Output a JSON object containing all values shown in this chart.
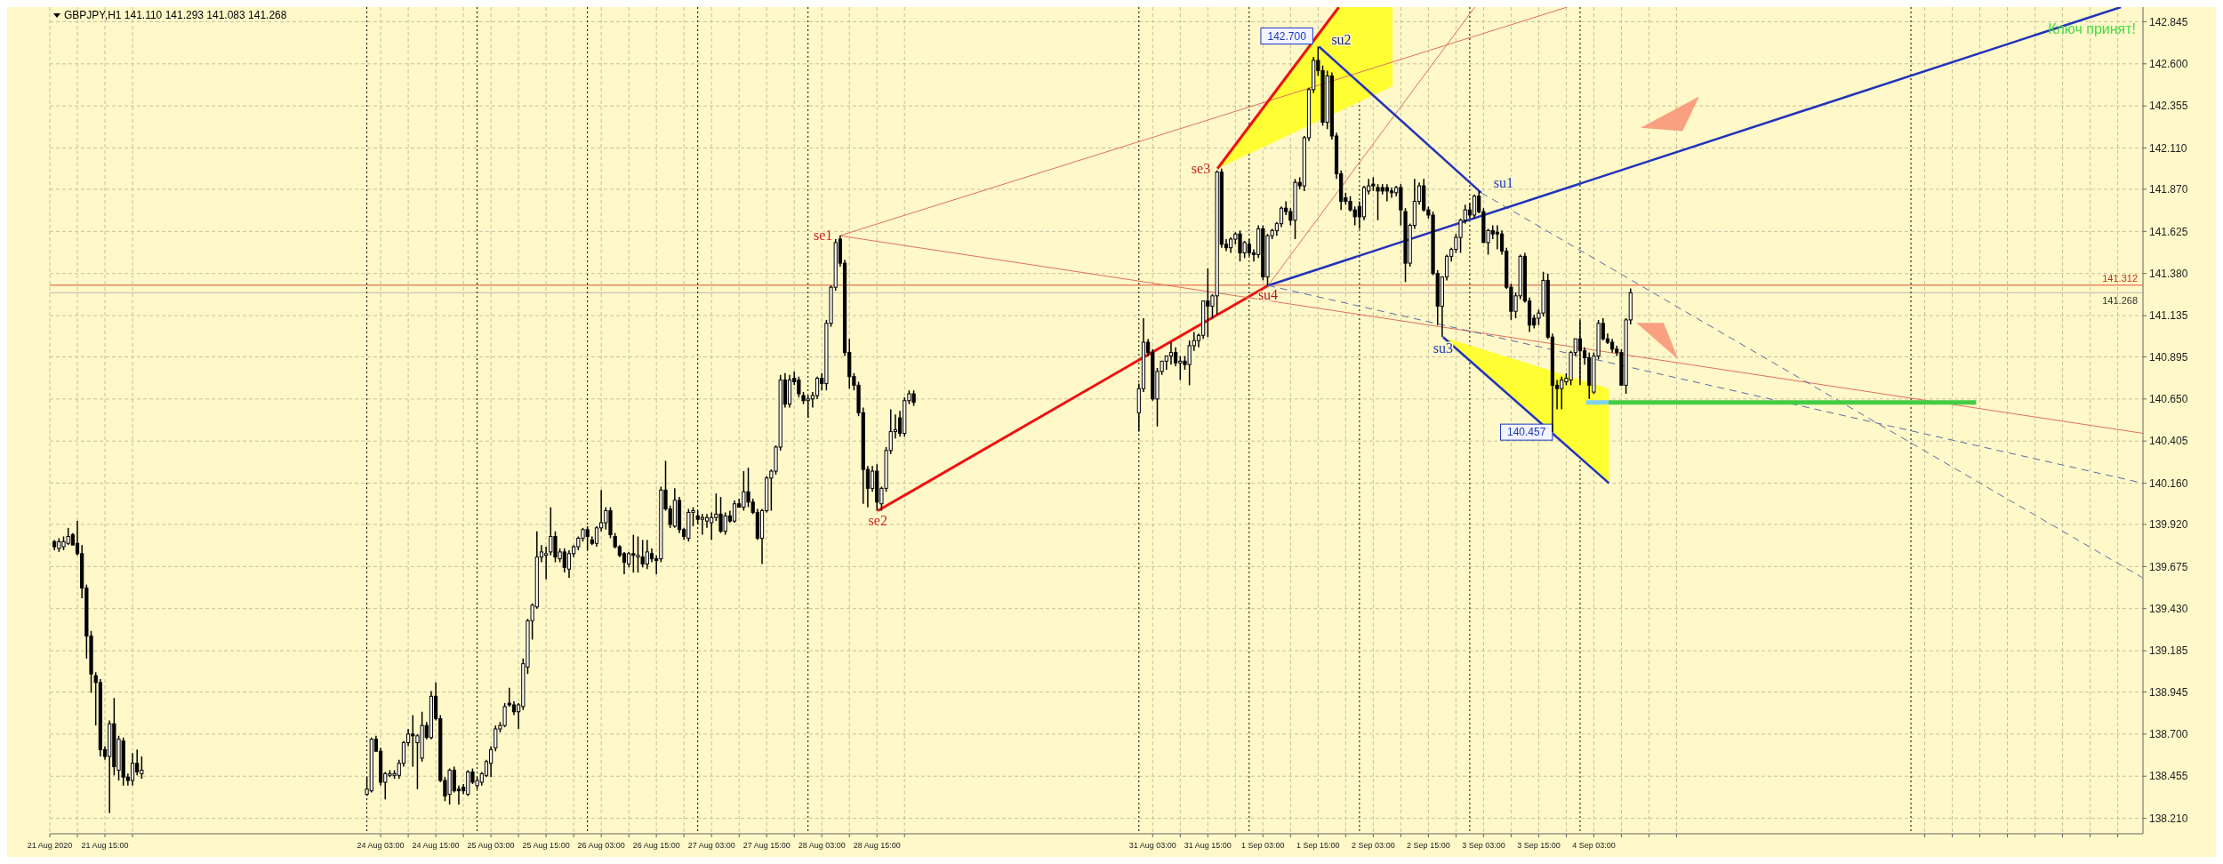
{
  "chart_data": {
    "type": "candlestick",
    "title": "GBPJPY,H1  141.110 141.293 141.083 141.268",
    "xlim": [
      "2020-08-21T03:00",
      "2020-09-09T02:30"
    ],
    "ylim": [
      138.12,
      142.93
    ],
    "xticks": [
      {
        "value": "2020-08-21T03:00",
        "label": "21 Aug 2020"
      },
      {
        "value": "2020-08-21T09:00",
        "label": null
      },
      {
        "value": "2020-08-21T15:00",
        "label": "21 Aug 15:00"
      },
      {
        "value": "2020-08-21T21:00",
        "label": null
      },
      {
        "value": "2020-08-24T03:00",
        "label": "24 Aug 03:00"
      },
      {
        "value": "2020-08-24T09:00",
        "label": null
      },
      {
        "value": "2020-08-24T15:00",
        "label": "24 Aug 15:00"
      },
      {
        "value": "2020-08-24T21:00",
        "label": null
      },
      {
        "value": "2020-08-25T03:00",
        "label": "25 Aug 03:00"
      },
      {
        "value": "2020-08-25T09:00",
        "label": null
      },
      {
        "value": "2020-08-25T15:00",
        "label": "25 Aug 15:00"
      },
      {
        "value": "2020-08-25T21:00",
        "label": null
      },
      {
        "value": "2020-08-26T03:00",
        "label": "26 Aug 03:00"
      },
      {
        "value": "2020-08-26T09:00",
        "label": null
      },
      {
        "value": "2020-08-26T15:00",
        "label": "26 Aug 15:00"
      },
      {
        "value": "2020-08-26T21:00",
        "label": null
      },
      {
        "value": "2020-08-27T03:00",
        "label": "27 Aug 03:00"
      },
      {
        "value": "2020-08-27T09:00",
        "label": null
      },
      {
        "value": "2020-08-27T15:00",
        "label": "27 Aug 15:00"
      },
      {
        "value": "2020-08-27T21:00",
        "label": null
      },
      {
        "value": "2020-08-28T03:00",
        "label": "28 Aug 03:00"
      },
      {
        "value": "2020-08-28T09:00",
        "label": null
      },
      {
        "value": "2020-08-28T15:00",
        "label": "28 Aug 15:00"
      },
      {
        "value": "2020-08-28T21:00",
        "label": null
      },
      {
        "value": "2020-08-31T03:00",
        "label": "31 Aug 03:00"
      },
      {
        "value": "2020-08-31T09:00",
        "label": null
      },
      {
        "value": "2020-08-31T15:00",
        "label": "31 Aug 15:00"
      },
      {
        "value": "2020-08-31T21:00",
        "label": null
      },
      {
        "value": "2020-09-01T03:00",
        "label": "1 Sep 03:00"
      },
      {
        "value": "2020-09-01T09:00",
        "label": null
      },
      {
        "value": "2020-09-01T15:00",
        "label": "1 Sep 15:00"
      },
      {
        "value": "2020-09-01T21:00",
        "label": null
      },
      {
        "value": "2020-09-02T03:00",
        "label": "2 Sep 03:00"
      },
      {
        "value": "2020-09-02T09:00",
        "label": null
      },
      {
        "value": "2020-09-02T15:00",
        "label": "2 Sep 15:00"
      },
      {
        "value": "2020-09-02T21:00",
        "label": null
      },
      {
        "value": "2020-09-03T03:00",
        "label": "3 Sep 03:00"
      },
      {
        "value": "2020-09-03T09:00",
        "label": null
      },
      {
        "value": "2020-09-03T15:00",
        "label": "3 Sep 15:00"
      },
      {
        "value": "2020-09-03T21:00",
        "label": null
      },
      {
        "value": "2020-09-04T03:00",
        "label": "4 Sep 03:00"
      },
      {
        "value": "2020-09-04T09:00",
        "label": null
      },
      {
        "value": "2020-09-04T15:00",
        "label": null
      },
      {
        "value": "2020-09-04T21:00",
        "label": null
      },
      {
        "value": "2020-09-07T03:00",
        "label": null
      },
      {
        "value": "2020-09-07T09:00",
        "label": null
      },
      {
        "value": "2020-09-07T15:00",
        "label": null
      },
      {
        "value": "2020-09-07T21:00",
        "label": null
      },
      {
        "value": "2020-09-08T03:00",
        "label": null
      },
      {
        "value": "2020-09-08T09:00",
        "label": null
      },
      {
        "value": "2020-09-08T15:00",
        "label": null
      },
      {
        "value": "2020-09-08T21:00",
        "label": null
      }
    ],
    "yticks": [
      {
        "value": 138.21,
        "label": "138.210"
      },
      138.455,
      {
        "value": 138.7,
        "label": "138.700"
      },
      138.945,
      139.185,
      {
        "value": 139.43,
        "label": "139.430"
      },
      139.675,
      {
        "value": 139.92,
        "label": "139.920"
      },
      {
        "value": 140.16,
        "label": "140.160"
      },
      140.405,
      {
        "value": 140.65,
        "label": "140.650"
      },
      140.895,
      141.135,
      {
        "value": 141.38,
        "label": "141.380"
      },
      141.625,
      {
        "value": 141.87,
        "label": "141.870"
      },
      {
        "value": 142.11,
        "label": "142.110"
      },
      142.355,
      {
        "value": 142.6,
        "label": "142.600"
      },
      142.845
    ],
    "grid": true,
    "x": [
      "2020-08-21T04:00",
      "2020-08-21T05:00",
      "2020-08-21T06:00",
      "2020-08-21T07:00",
      "2020-08-21T08:00",
      "2020-08-21T09:00",
      "2020-08-21T10:00",
      "2020-08-21T11:00",
      "2020-08-21T12:00",
      "2020-08-21T13:00",
      "2020-08-21T14:00",
      "2020-08-21T15:00",
      "2020-08-21T16:00",
      "2020-08-21T17:00",
      "2020-08-21T18:00",
      "2020-08-21T19:00",
      "2020-08-21T20:00",
      "2020-08-21T21:00",
      "2020-08-21T22:00",
      "2020-08-21T23:00",
      "2020-08-24T00:00",
      "2020-08-24T01:00",
      "2020-08-24T02:00",
      "2020-08-24T03:00",
      "2020-08-24T04:00",
      "2020-08-24T05:00",
      "2020-08-24T06:00",
      "2020-08-24T07:00",
      "2020-08-24T08:00",
      "2020-08-24T09:00",
      "2020-08-24T10:00",
      "2020-08-24T11:00",
      "2020-08-24T12:00",
      "2020-08-24T13:00",
      "2020-08-24T14:00",
      "2020-08-24T15:00",
      "2020-08-24T16:00",
      "2020-08-24T17:00",
      "2020-08-24T18:00",
      "2020-08-24T19:00",
      "2020-08-24T20:00",
      "2020-08-24T21:00",
      "2020-08-24T22:00",
      "2020-08-24T23:00",
      "2020-08-25T00:00",
      "2020-08-25T01:00",
      "2020-08-25T02:00",
      "2020-08-25T03:00",
      "2020-08-25T04:00",
      "2020-08-25T05:00",
      "2020-08-25T06:00",
      "2020-08-25T07:00",
      "2020-08-25T08:00",
      "2020-08-25T09:00",
      "2020-08-25T10:00",
      "2020-08-25T11:00",
      "2020-08-25T12:00",
      "2020-08-25T13:00",
      "2020-08-25T14:00",
      "2020-08-25T15:00",
      "2020-08-25T16:00",
      "2020-08-25T17:00",
      "2020-08-25T18:00",
      "2020-08-25T19:00",
      "2020-08-25T20:00",
      "2020-08-25T21:00",
      "2020-08-25T22:00",
      "2020-08-25T23:00",
      "2020-08-26T00:00",
      "2020-08-26T01:00",
      "2020-08-26T02:00",
      "2020-08-26T03:00",
      "2020-08-26T04:00",
      "2020-08-26T05:00",
      "2020-08-26T06:00",
      "2020-08-26T07:00",
      "2020-08-26T08:00",
      "2020-08-26T09:00",
      "2020-08-26T10:00",
      "2020-08-26T11:00",
      "2020-08-26T12:00",
      "2020-08-26T13:00",
      "2020-08-26T14:00",
      "2020-08-26T15:00",
      "2020-08-26T16:00",
      "2020-08-26T17:00",
      "2020-08-26T18:00",
      "2020-08-26T19:00",
      "2020-08-26T20:00",
      "2020-08-26T21:00",
      "2020-08-26T22:00",
      "2020-08-26T23:00",
      "2020-08-27T00:00",
      "2020-08-27T01:00",
      "2020-08-27T02:00",
      "2020-08-27T03:00",
      "2020-08-27T04:00",
      "2020-08-27T05:00",
      "2020-08-27T06:00",
      "2020-08-27T07:00",
      "2020-08-27T08:00",
      "2020-08-27T09:00",
      "2020-08-27T10:00",
      "2020-08-27T11:00",
      "2020-08-27T12:00",
      "2020-08-27T13:00",
      "2020-08-27T14:00",
      "2020-08-27T15:00",
      "2020-08-27T16:00",
      "2020-08-27T17:00",
      "2020-08-27T18:00",
      "2020-08-27T19:00",
      "2020-08-27T20:00",
      "2020-08-27T21:00",
      "2020-08-27T22:00",
      "2020-08-27T23:00",
      "2020-08-28T00:00",
      "2020-08-28T01:00",
      "2020-08-28T02:00",
      "2020-08-28T03:00",
      "2020-08-28T04:00",
      "2020-08-28T05:00",
      "2020-08-28T06:00",
      "2020-08-28T07:00",
      "2020-08-28T08:00",
      "2020-08-28T09:00",
      "2020-08-28T10:00",
      "2020-08-28T11:00",
      "2020-08-28T12:00",
      "2020-08-28T13:00",
      "2020-08-28T14:00",
      "2020-08-28T15:00",
      "2020-08-28T16:00",
      "2020-08-28T17:00",
      "2020-08-28T18:00",
      "2020-08-28T19:00",
      "2020-08-28T20:00",
      "2020-08-28T21:00",
      "2020-08-28T22:00",
      "2020-08-28T23:00",
      "2020-08-31T00:00",
      "2020-08-31T01:00",
      "2020-08-31T02:00",
      "2020-08-31T03:00",
      "2020-08-31T04:00",
      "2020-08-31T05:00",
      "2020-08-31T06:00",
      "2020-08-31T07:00",
      "2020-08-31T08:00",
      "2020-08-31T09:00",
      "2020-08-31T10:00",
      "2020-08-31T11:00",
      "2020-08-31T12:00",
      "2020-08-31T13:00",
      "2020-08-31T14:00",
      "2020-08-31T15:00",
      "2020-08-31T16:00",
      "2020-08-31T17:00",
      "2020-08-31T18:00",
      "2020-08-31T19:00",
      "2020-08-31T20:00",
      "2020-08-31T21:00",
      "2020-08-31T22:00",
      "2020-08-31T23:00",
      "2020-09-01T00:00",
      "2020-09-01T01:00",
      "2020-09-01T02:00",
      "2020-09-01T03:00",
      "2020-09-01T04:00",
      "2020-09-01T05:00",
      "2020-09-01T06:00",
      "2020-09-01T07:00",
      "2020-09-01T08:00",
      "2020-09-01T09:00",
      "2020-09-01T10:00",
      "2020-09-01T11:00",
      "2020-09-01T12:00",
      "2020-09-01T13:00",
      "2020-09-01T14:00",
      "2020-09-01T15:00",
      "2020-09-01T16:00",
      "2020-09-01T17:00",
      "2020-09-01T18:00",
      "2020-09-01T19:00",
      "2020-09-01T20:00",
      "2020-09-01T21:00",
      "2020-09-01T22:00",
      "2020-09-01T23:00",
      "2020-09-02T00:00",
      "2020-09-02T01:00",
      "2020-09-02T02:00",
      "2020-09-02T03:00",
      "2020-09-02T04:00",
      "2020-09-02T05:00",
      "2020-09-02T06:00",
      "2020-09-02T07:00",
      "2020-09-02T08:00",
      "2020-09-02T09:00",
      "2020-09-02T10:00",
      "2020-09-02T11:00",
      "2020-09-02T12:00",
      "2020-09-02T13:00",
      "2020-09-02T14:00",
      "2020-09-02T15:00",
      "2020-09-02T16:00",
      "2020-09-02T17:00",
      "2020-09-02T18:00",
      "2020-09-02T19:00",
      "2020-09-02T20:00",
      "2020-09-02T21:00",
      "2020-09-02T22:00",
      "2020-09-02T23:00",
      "2020-09-03T00:00",
      "2020-09-03T01:00",
      "2020-09-03T02:00",
      "2020-09-03T03:00",
      "2020-09-03T04:00",
      "2020-09-03T05:00",
      "2020-09-03T06:00",
      "2020-09-03T07:00",
      "2020-09-03T08:00",
      "2020-09-03T09:00",
      "2020-09-03T10:00",
      "2020-09-03T11:00",
      "2020-09-03T12:00",
      "2020-09-03T13:00",
      "2020-09-03T14:00",
      "2020-09-03T15:00",
      "2020-09-03T16:00",
      "2020-09-03T17:00",
      "2020-09-03T18:00",
      "2020-09-03T19:00",
      "2020-09-03T20:00",
      "2020-09-03T21:00",
      "2020-09-03T22:00",
      "2020-09-03T23:00",
      "2020-09-04T00:00",
      "2020-09-04T01:00",
      "2020-09-04T02:00",
      "2020-09-04T03:00",
      "2020-09-04T04:00",
      "2020-09-04T05:00",
      "2020-09-04T06:00",
      "2020-09-04T07:00",
      "2020-09-04T08:00",
      "2020-09-04T09:00",
      "2020-09-04T10:00",
      "2020-09-04T11:00"
    ],
    "ohlc": [
      [
        139.82,
        139.83,
        139.77,
        139.79
      ],
      [
        139.78,
        139.84,
        139.76,
        139.82
      ],
      [
        139.79,
        139.85,
        139.77,
        139.82
      ],
      [
        139.81,
        139.9,
        139.8,
        139.85
      ],
      [
        139.86,
        139.87,
        139.8,
        139.8
      ],
      [
        139.81,
        139.94,
        139.74,
        139.75
      ],
      [
        139.75,
        139.8,
        139.49,
        139.55
      ],
      [
        139.55,
        139.57,
        139.14,
        139.27
      ],
      [
        139.27,
        139.3,
        138.94,
        139.05
      ],
      [
        139.04,
        139.06,
        138.75,
        139.0
      ],
      [
        139.0,
        139.02,
        138.57,
        138.61
      ],
      [
        138.61,
        138.63,
        138.55,
        138.57
      ],
      [
        138.57,
        138.78,
        138.24,
        138.76
      ],
      [
        138.76,
        138.91,
        138.46,
        138.51
      ],
      [
        138.49,
        138.69,
        138.43,
        138.67
      ],
      [
        138.66,
        138.68,
        138.4,
        138.45
      ],
      [
        138.45,
        138.47,
        138.4,
        138.43
      ],
      [
        138.43,
        138.59,
        138.4,
        138.53
      ],
      [
        138.53,
        138.61,
        138.46,
        138.48
      ],
      [
        138.47,
        138.57,
        138.44,
        138.49
      ],
      [
        138.35,
        138.45,
        138.34,
        138.38
      ],
      [
        138.37,
        138.68,
        138.36,
        138.67
      ],
      [
        138.67,
        138.69,
        138.6,
        138.6
      ],
      [
        138.6,
        138.62,
        138.4,
        138.42
      ],
      [
        138.42,
        138.48,
        138.32,
        138.47
      ],
      [
        138.46,
        138.49,
        138.45,
        138.47
      ],
      [
        138.46,
        138.49,
        138.44,
        138.47
      ],
      [
        138.46,
        138.55,
        138.44,
        138.53
      ],
      [
        138.53,
        138.66,
        138.51,
        138.65
      ],
      [
        138.65,
        138.73,
        138.63,
        138.7
      ],
      [
        138.7,
        138.81,
        138.51,
        138.69
      ],
      [
        138.65,
        138.7,
        138.38,
        138.69
      ],
      [
        138.56,
        138.83,
        138.54,
        138.75
      ],
      [
        138.75,
        138.77,
        138.67,
        138.68
      ],
      [
        138.68,
        138.95,
        138.67,
        138.92
      ],
      [
        138.92,
        139.0,
        138.78,
        138.79
      ],
      [
        138.79,
        138.81,
        138.42,
        138.43
      ],
      [
        138.43,
        138.45,
        138.31,
        138.34
      ],
      [
        138.35,
        138.5,
        138.29,
        138.49
      ],
      [
        138.49,
        138.51,
        138.36,
        138.37
      ],
      [
        138.38,
        138.4,
        138.29,
        138.37
      ],
      [
        138.39,
        138.41,
        138.35,
        138.37
      ],
      [
        138.35,
        138.49,
        138.34,
        138.48
      ],
      [
        138.48,
        138.5,
        138.41,
        138.42
      ],
      [
        138.4,
        138.45,
        138.38,
        138.43
      ],
      [
        138.42,
        138.48,
        138.4,
        138.47
      ],
      [
        138.46,
        138.55,
        138.45,
        138.54
      ],
      [
        138.53,
        138.63,
        138.45,
        138.61
      ],
      [
        138.62,
        138.75,
        138.6,
        138.73
      ],
      [
        138.73,
        138.77,
        138.71,
        138.75
      ],
      [
        138.75,
        138.88,
        138.74,
        138.86
      ],
      [
        138.88,
        138.97,
        138.86,
        138.87
      ],
      [
        138.87,
        138.89,
        138.81,
        138.83
      ],
      [
        138.83,
        138.88,
        138.73,
        138.87
      ],
      [
        138.86,
        139.14,
        138.84,
        139.11
      ],
      [
        139.09,
        139.37,
        139.05,
        139.36
      ],
      [
        139.36,
        139.46,
        139.25,
        139.45
      ],
      [
        139.44,
        139.88,
        139.43,
        139.73
      ],
      [
        139.73,
        139.8,
        139.7,
        139.76
      ],
      [
        139.74,
        139.79,
        139.6,
        139.75
      ],
      [
        139.76,
        140.02,
        139.74,
        139.85
      ],
      [
        139.85,
        139.88,
        139.7,
        139.73
      ],
      [
        139.72,
        139.78,
        139.7,
        139.76
      ],
      [
        139.76,
        139.78,
        139.64,
        139.67
      ],
      [
        139.66,
        139.77,
        139.61,
        139.75
      ],
      [
        139.75,
        139.8,
        139.73,
        139.79
      ],
      [
        139.79,
        139.85,
        139.77,
        139.84
      ],
      [
        139.84,
        139.9,
        139.82,
        139.89
      ],
      [
        139.89,
        139.91,
        139.77,
        139.85
      ],
      [
        139.83,
        139.85,
        139.8,
        139.81
      ],
      [
        139.81,
        139.91,
        139.79,
        139.9
      ],
      [
        139.9,
        140.12,
        139.88,
        139.93
      ],
      [
        139.93,
        140.02,
        139.89,
        140.0
      ],
      [
        140.0,
        140.02,
        139.84,
        139.86
      ],
      [
        139.85,
        139.87,
        139.78,
        139.79
      ],
      [
        139.79,
        139.8,
        139.73,
        139.74
      ],
      [
        139.75,
        139.76,
        139.63,
        139.7
      ],
      [
        139.69,
        139.76,
        139.67,
        139.75
      ],
      [
        139.75,
        139.86,
        139.64,
        139.74
      ],
      [
        139.73,
        139.85,
        139.64,
        139.74
      ],
      [
        139.73,
        139.83,
        139.67,
        139.69
      ],
      [
        139.69,
        139.83,
        139.66,
        139.76
      ],
      [
        139.75,
        139.78,
        139.7,
        139.72
      ],
      [
        139.72,
        139.74,
        139.63,
        139.71
      ],
      [
        139.72,
        140.14,
        139.7,
        140.12
      ],
      [
        140.12,
        140.29,
        140.0,
        140.01
      ],
      [
        140.01,
        140.03,
        139.9,
        139.92
      ],
      [
        139.91,
        140.13,
        139.9,
        140.06
      ],
      [
        140.06,
        140.08,
        139.87,
        139.89
      ],
      [
        139.89,
        139.9,
        139.83,
        139.85
      ],
      [
        139.84,
        140.01,
        139.82,
        139.99
      ],
      [
        139.99,
        140.02,
        139.91,
        140.0
      ],
      [
        139.97,
        140.0,
        139.92,
        139.95
      ],
      [
        139.95,
        139.98,
        139.86,
        139.96
      ],
      [
        139.94,
        139.98,
        139.9,
        139.96
      ],
      [
        139.93,
        139.99,
        139.83,
        139.96
      ],
      [
        139.96,
        140.1,
        139.94,
        139.98
      ],
      [
        139.98,
        140.08,
        139.87,
        139.88
      ],
      [
        139.88,
        139.99,
        139.86,
        139.97
      ],
      [
        139.97,
        140.0,
        139.93,
        139.94
      ],
      [
        139.94,
        140.06,
        139.93,
        140.04
      ],
      [
        140.04,
        140.07,
        140.02,
        140.02
      ],
      [
        140.02,
        140.23,
        140.0,
        140.11
      ],
      [
        140.11,
        140.25,
        140.02,
        140.05
      ],
      [
        140.05,
        140.07,
        139.98,
        139.99
      ],
      [
        139.99,
        140.01,
        139.83,
        139.84
      ],
      [
        139.84,
        140.01,
        139.69,
        140.0
      ],
      [
        140.0,
        140.2,
        139.99,
        140.19
      ],
      [
        140.19,
        140.24,
        140.0,
        140.23
      ],
      [
        140.23,
        140.38,
        140.21,
        140.37
      ],
      [
        140.37,
        140.79,
        140.35,
        140.76
      ],
      [
        140.76,
        140.8,
        140.6,
        140.62
      ],
      [
        140.62,
        140.79,
        140.6,
        140.76
      ],
      [
        140.77,
        140.81,
        140.73,
        140.75
      ],
      [
        140.76,
        140.78,
        140.66,
        140.68
      ],
      [
        140.67,
        140.69,
        140.62,
        140.64
      ],
      [
        140.64,
        140.67,
        140.54,
        140.65
      ],
      [
        140.65,
        140.69,
        140.6,
        140.67
      ],
      [
        140.67,
        140.78,
        140.65,
        140.77
      ],
      [
        140.77,
        140.8,
        140.7,
        140.74
      ],
      [
        140.74,
        141.11,
        140.7,
        141.09
      ],
      [
        141.09,
        141.31,
        141.07,
        141.3
      ],
      [
        141.3,
        141.58,
        141.28,
        141.56
      ],
      [
        141.58,
        141.6,
        141.42,
        141.44
      ],
      [
        141.44,
        141.46,
        140.9,
        140.92
      ],
      [
        140.92,
        141.0,
        140.71,
        140.78
      ],
      [
        140.78,
        140.8,
        140.7,
        140.73
      ],
      [
        140.73,
        140.75,
        140.55,
        140.57
      ],
      [
        140.57,
        140.6,
        140.04,
        140.24
      ],
      [
        140.24,
        140.26,
        140.02,
        140.13
      ],
      [
        140.13,
        140.26,
        140.11,
        140.23
      ],
      [
        140.23,
        140.27,
        140.0,
        140.05
      ],
      [
        140.04,
        140.14,
        140.0,
        140.13
      ],
      [
        140.13,
        140.37,
        140.11,
        140.35
      ],
      [
        140.35,
        140.59,
        140.33,
        140.46
      ],
      [
        140.46,
        140.56,
        140.42,
        140.47
      ],
      [
        140.54,
        140.58,
        140.43,
        140.45
      ],
      [
        140.45,
        140.66,
        140.43,
        140.64
      ],
      [
        140.64,
        140.7,
        140.62,
        140.68
      ],
      [
        140.68,
        140.7,
        140.61,
        140.63
      ],
      [
        140.57,
        140.74,
        140.46,
        140.71
      ],
      [
        140.71,
        141.12,
        140.69,
        140.98
      ],
      [
        140.98,
        141.0,
        140.9,
        140.92
      ],
      [
        140.92,
        140.94,
        140.64,
        140.65
      ],
      [
        140.65,
        140.83,
        140.49,
        140.81
      ],
      [
        140.81,
        140.87,
        140.79,
        140.87
      ],
      [
        140.87,
        140.9,
        140.82,
        140.9
      ],
      [
        140.9,
        140.98,
        140.85,
        140.92
      ],
      [
        140.92,
        140.95,
        140.84,
        140.86
      ],
      [
        140.86,
        140.9,
        140.76,
        140.87
      ],
      [
        140.87,
        140.9,
        140.82,
        140.85
      ],
      [
        140.85,
        140.99,
        140.73,
        140.96
      ],
      [
        140.96,
        141.04,
        140.93,
        140.99
      ],
      [
        140.99,
        141.03,
        140.95,
        141.02
      ],
      [
        141.02,
        141.22,
        141.0,
        141.22
      ],
      [
        141.22,
        141.41,
        141.01,
        141.19
      ],
      [
        141.19,
        141.26,
        141.12,
        141.25
      ],
      [
        141.25,
        141.98,
        141.14,
        141.97
      ],
      [
        141.97,
        141.99,
        141.53,
        141.55
      ],
      [
        141.55,
        141.58,
        141.51,
        141.53
      ],
      [
        141.53,
        141.59,
        141.5,
        141.58
      ],
      [
        141.58,
        141.62,
        141.55,
        141.61
      ],
      [
        141.61,
        141.63,
        141.45,
        141.5
      ],
      [
        141.5,
        141.57,
        141.47,
        141.56
      ],
      [
        141.55,
        141.58,
        141.48,
        141.5
      ],
      [
        141.5,
        141.52,
        141.45,
        141.49
      ],
      [
        141.49,
        141.66,
        141.47,
        141.64
      ],
      [
        141.64,
        141.66,
        141.34,
        141.36
      ],
      [
        141.36,
        141.61,
        141.31,
        141.6
      ],
      [
        141.6,
        141.64,
        141.58,
        141.63
      ],
      [
        141.63,
        141.68,
        141.6,
        141.67
      ],
      [
        141.67,
        141.77,
        141.65,
        141.76
      ],
      [
        141.76,
        141.8,
        141.72,
        141.74
      ],
      [
        141.74,
        141.76,
        141.66,
        141.69
      ],
      [
        141.69,
        141.93,
        141.58,
        141.91
      ],
      [
        141.91,
        141.94,
        141.87,
        141.89
      ],
      [
        141.89,
        142.18,
        141.86,
        142.17
      ],
      [
        142.17,
        142.46,
        142.15,
        142.45
      ],
      [
        142.45,
        142.64,
        142.43,
        142.62
      ],
      [
        142.62,
        142.7,
        142.53,
        142.56
      ],
      [
        142.56,
        142.59,
        142.24,
        142.26
      ],
      [
        142.26,
        142.56,
        142.22,
        142.53
      ],
      [
        142.53,
        142.55,
        142.16,
        142.18
      ],
      [
        142.18,
        142.2,
        141.93,
        141.96
      ],
      [
        141.96,
        141.98,
        141.75,
        141.8
      ],
      [
        141.82,
        141.85,
        141.78,
        141.8
      ],
      [
        141.8,
        141.83,
        141.74,
        141.75
      ],
      [
        141.75,
        141.77,
        141.66,
        141.71
      ],
      [
        141.77,
        141.8,
        141.64,
        141.71
      ],
      [
        141.71,
        141.89,
        141.69,
        141.88
      ],
      [
        141.86,
        141.93,
        141.84,
        141.89
      ],
      [
        141.9,
        141.94,
        141.86,
        141.89
      ],
      [
        141.88,
        141.9,
        141.69,
        141.86
      ],
      [
        141.88,
        141.9,
        141.84,
        141.86
      ],
      [
        141.88,
        141.9,
        141.8,
        141.86
      ],
      [
        141.86,
        141.88,
        141.82,
        141.85
      ],
      [
        141.85,
        141.89,
        141.83,
        141.88
      ],
      [
        141.88,
        141.9,
        141.66,
        141.75
      ],
      [
        141.74,
        141.76,
        141.33,
        141.44
      ],
      [
        141.44,
        141.67,
        141.42,
        141.66
      ],
      [
        141.66,
        141.93,
        141.64,
        141.8
      ],
      [
        141.8,
        141.91,
        141.78,
        141.89
      ],
      [
        141.89,
        141.93,
        141.74,
        141.75
      ],
      [
        141.75,
        141.77,
        141.7,
        141.72
      ],
      [
        141.72,
        141.74,
        141.37,
        141.38
      ],
      [
        141.38,
        141.4,
        141.08,
        141.19
      ],
      [
        141.19,
        141.36,
        141.01,
        141.36
      ],
      [
        141.36,
        141.49,
        141.34,
        141.48
      ],
      [
        141.48,
        141.53,
        141.45,
        141.52
      ],
      [
        141.52,
        141.61,
        141.5,
        141.59
      ],
      [
        141.59,
        141.7,
        141.5,
        141.69
      ],
      [
        141.69,
        141.78,
        141.67,
        141.75
      ],
      [
        141.75,
        141.79,
        141.7,
        141.72
      ],
      [
        141.72,
        141.84,
        141.7,
        141.83
      ],
      [
        141.83,
        141.86,
        141.73,
        141.74
      ],
      [
        141.74,
        141.76,
        141.56,
        141.56
      ],
      [
        141.56,
        141.64,
        141.49,
        141.63
      ],
      [
        141.63,
        141.66,
        141.58,
        141.61
      ],
      [
        141.62,
        141.66,
        141.52,
        141.61
      ],
      [
        141.61,
        141.63,
        141.49,
        141.51
      ],
      [
        141.51,
        141.53,
        141.29,
        141.3
      ],
      [
        141.3,
        141.32,
        141.11,
        141.16
      ],
      [
        141.16,
        141.27,
        141.12,
        141.25
      ],
      [
        141.25,
        141.49,
        141.23,
        141.48
      ],
      [
        141.48,
        141.5,
        141.21,
        141.22
      ],
      [
        141.22,
        141.24,
        141.04,
        141.08
      ],
      [
        141.12,
        141.14,
        141.06,
        141.08
      ],
      [
        141.12,
        141.17,
        141.08,
        141.15
      ],
      [
        141.15,
        141.39,
        141.13,
        141.34
      ],
      [
        141.34,
        141.38,
        141.0,
        141.01
      ],
      [
        141.01,
        141.03,
        140.457,
        140.73
      ],
      [
        140.73,
        140.76,
        140.59,
        140.71
      ],
      [
        140.71,
        140.78,
        140.59,
        140.76
      ],
      [
        140.75,
        140.8,
        140.73,
        140.77
      ],
      [
        140.76,
        140.93,
        140.73,
        140.92
      ],
      [
        140.92,
        141.0,
        140.9,
        141.0
      ],
      [
        141.0,
        141.11,
        140.73,
        140.93
      ],
      [
        140.93,
        140.95,
        140.85,
        140.89
      ],
      [
        140.89,
        140.92,
        140.65,
        140.73
      ],
      [
        140.69,
        140.92,
        140.68,
        140.9
      ],
      [
        140.9,
        141.11,
        140.88,
        141.09
      ],
      [
        141.09,
        141.12,
        140.99,
        141.0
      ],
      [
        141.0,
        141.03,
        140.97,
        140.98
      ],
      [
        140.98,
        141.0,
        140.92,
        140.94
      ],
      [
        140.94,
        140.96,
        140.9,
        140.92
      ],
      [
        140.92,
        140.94,
        140.73,
        140.73
      ],
      [
        140.73,
        141.12,
        140.68,
        141.11
      ],
      [
        141.11,
        141.293,
        141.083,
        141.268
      ]
    ],
    "series": [
      {
        "type": "line",
        "x": [
          "2020-08-28T15:12",
          "2020-09-01T04:06"
        ],
        "values": [
          140.0,
          141.31
        ],
        "color": "#ee1111",
        "line_style": "solid"
      },
      {
        "type": "line",
        "x": [
          "2020-08-28T06:54",
          "2020-09-03T21:12"
        ],
        "values": [
          141.6,
          142.93
        ],
        "color": "#e07060",
        "line_style": "solid"
      },
      {
        "type": "line",
        "x": [
          "2020-08-28T06:54",
          "2020-09-09T02:30"
        ],
        "values": [
          141.6,
          140.45
        ],
        "color": "#e07060",
        "line_style": "solid"
      },
      {
        "type": "line",
        "x": [
          "2020-09-01T04:06",
          "2020-09-03T01:06"
        ],
        "values": [
          141.31,
          142.93
        ],
        "color": "#e07060",
        "line_style": "solid"
      },
      {
        "type": "line",
        "x": [
          "2020-08-31T17:06",
          "2020-09-01T19:30"
        ],
        "values": [
          141.99,
          142.93
        ],
        "color": "#ee1111",
        "line_style": "solid"
      },
      {
        "type": "line",
        "x": [
          "2020-09-01T15:12",
          "2020-09-03T02:30"
        ],
        "values": [
          142.7,
          141.85
        ],
        "color": "#2233bb",
        "line_style": "solid"
      },
      {
        "type": "line",
        "x": [
          "2020-09-03T02:30",
          "2020-09-09T02:24"
        ],
        "values": [
          141.85,
          139.61
        ],
        "color": "#5a6aa8",
        "line_style": "dashed"
      },
      {
        "type": "line",
        "x": [
          "2020-09-01T04:06",
          "2020-09-08T21:42"
        ],
        "values": [
          141.31,
          142.93
        ],
        "color": "#2233bb",
        "line_style": "solid"
      },
      {
        "type": "line",
        "x": [
          "2020-09-01T04:06",
          "2020-09-09T02:30"
        ],
        "values": [
          141.31,
          140.16
        ],
        "color": "#5a6aa8",
        "line_style": "dashed"
      },
      {
        "type": "line",
        "x": [
          "2020-09-02T18:12",
          "2020-09-04T06:18"
        ],
        "values": [
          141.01,
          140.16
        ],
        "color": "#2233bb",
        "line_style": "solid"
      },
      {
        "type": "line",
        "x": [
          "2020-09-04T06:12",
          "2020-09-07T14:12"
        ],
        "values": [
          140.63,
          140.63
        ],
        "color": "#44cc44",
        "line_style": "solid"
      },
      {
        "type": "line",
        "x": [
          "2020-09-04T01:18",
          "2020-09-04T06:12"
        ],
        "values": [
          140.63,
          140.63
        ],
        "color": "#7fd3f0",
        "line_style": "solid"
      }
    ],
    "ref_lines": [
      {
        "axis": "y",
        "value": 141.312,
        "label": "141.312",
        "color": "#e05030"
      },
      {
        "axis": "y",
        "value": 141.268,
        "label": "141.268",
        "color": "#b8b8b8"
      },
      {
        "axis": "x",
        "value": "2020-08-24T00:00",
        "color": "#000000",
        "line_style": "dotted"
      },
      {
        "axis": "x",
        "value": "2020-08-25T00:00",
        "color": "#000000",
        "line_style": "dotted"
      },
      {
        "axis": "x",
        "value": "2020-08-26T00:00",
        "color": "#000000",
        "line_style": "dotted"
      },
      {
        "axis": "x",
        "value": "2020-08-27T00:00",
        "color": "#000000",
        "line_style": "dotted"
      },
      {
        "axis": "x",
        "value": "2020-08-28T00:00",
        "color": "#000000",
        "line_style": "dotted"
      },
      {
        "axis": "x",
        "value": "2020-08-31T00:00",
        "color": "#000000",
        "line_style": "dotted"
      },
      {
        "axis": "x",
        "value": "2020-09-01T00:00",
        "color": "#000000",
        "line_style": "dotted"
      },
      {
        "axis": "x",
        "value": "2020-09-02T00:00",
        "color": "#000000",
        "line_style": "dotted"
      },
      {
        "axis": "x",
        "value": "2020-09-03T00:00",
        "color": "#000000",
        "line_style": "dotted"
      },
      {
        "axis": "x",
        "value": "2020-09-04T00:00",
        "color": "#000000",
        "line_style": "dotted"
      },
      {
        "axis": "x",
        "value": "2020-09-07T00:00",
        "color": "#000000",
        "line_style": "dotted"
      }
    ],
    "annotations": [
      "Ключ принят!",
      {
        "text": "se1",
        "x": "2020-08-28T06:54",
        "y": 141.6
      },
      {
        "text": "se2",
        "x": "2020-08-28T15:12",
        "y": 140.0
      },
      {
        "text": "se3",
        "x": "2020-08-31T17:06",
        "y": 141.99
      },
      {
        "text": "su4",
        "x": "2020-09-01T04:06",
        "y": 141.31
      },
      {
        "text": "su2",
        "x": "2020-09-01T15:12",
        "y": 142.7
      },
      {
        "text": "su1",
        "x": "2020-09-03T02:30",
        "y": 141.85
      },
      {
        "text": "su3",
        "x": "2020-09-02T18:12",
        "y": 141.01
      },
      {
        "text": "142.700",
        "x": "2020-09-01T15:00",
        "y": 142.7
      },
      {
        "text": "140.457",
        "x": "2020-09-03T18:00",
        "y": 140.457
      }
    ]
  }
}
